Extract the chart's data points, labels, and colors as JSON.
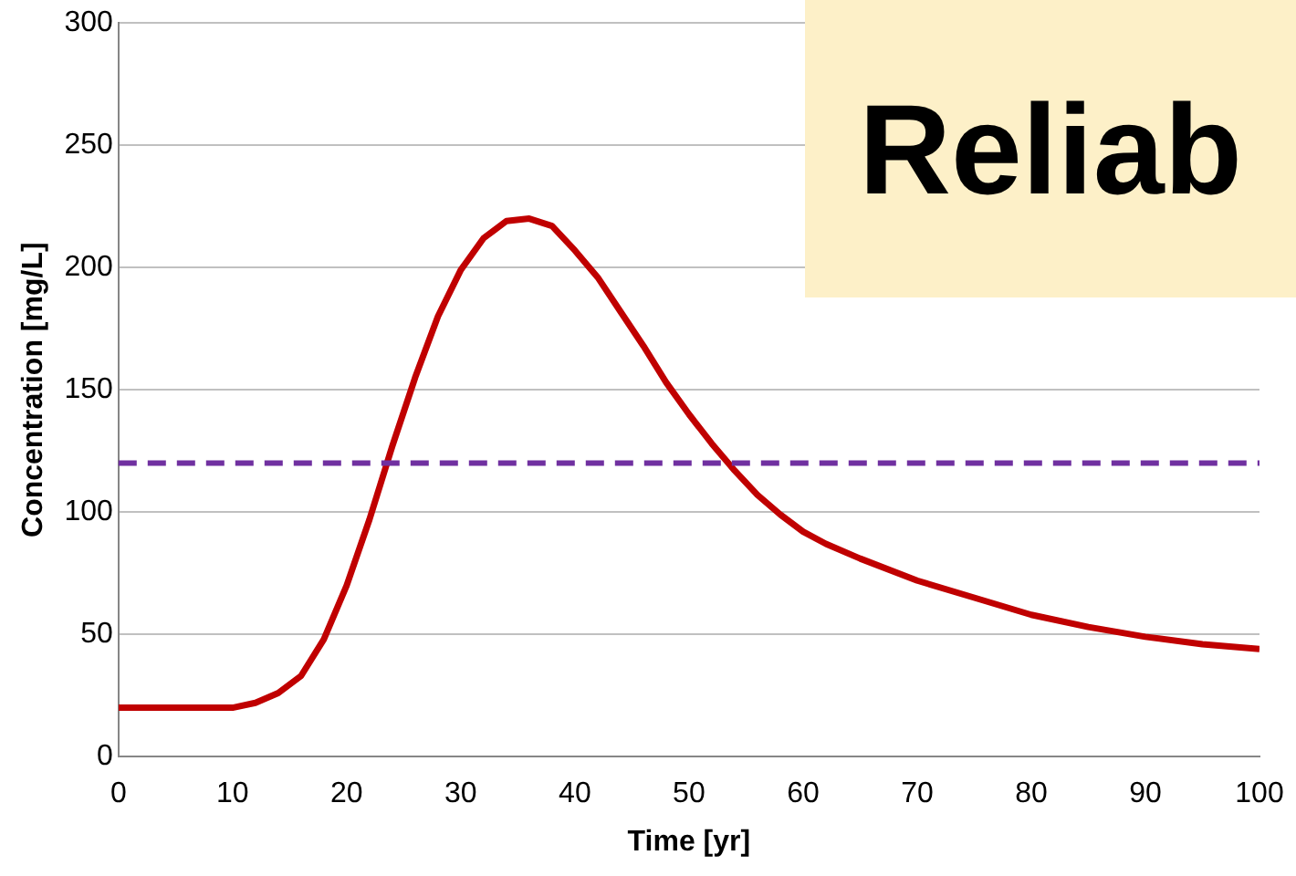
{
  "chart_data": {
    "type": "line",
    "xlabel": "Time [yr]",
    "ylabel": "Concentration [mg/L]",
    "xlim": [
      0,
      100
    ],
    "xticks": [
      0,
      10,
      20,
      30,
      40,
      50,
      60,
      70,
      80,
      90,
      100
    ],
    "ylim": [
      0,
      300
    ],
    "yticks": [
      0,
      50,
      100,
      150,
      200,
      250,
      300
    ],
    "grid": "y",
    "marker": "none",
    "series": [
      {
        "color": "#c00000",
        "x": [
          0,
          10,
          12,
          14,
          16,
          18,
          20,
          22,
          24,
          26,
          28,
          30,
          32,
          34,
          36,
          38,
          40,
          42,
          44,
          46,
          48,
          50,
          52,
          54,
          56,
          58,
          60,
          62,
          65,
          70,
          75,
          80,
          85,
          90,
          95,
          100
        ],
        "values": [
          20,
          20,
          22,
          26,
          33,
          48,
          70,
          97,
          127,
          155,
          180,
          199,
          212,
          219,
          220,
          217,
          207,
          196,
          182,
          168,
          153,
          140,
          128,
          117,
          107,
          99,
          92,
          87,
          81,
          72,
          65,
          58,
          53,
          49,
          46,
          44
        ]
      }
    ],
    "ref_lines": [
      {
        "axis": "y",
        "value": 120,
        "color": "#7030a0",
        "line_style": "dashed"
      }
    ],
    "annotations": [
      "Reliab"
    ]
  }
}
